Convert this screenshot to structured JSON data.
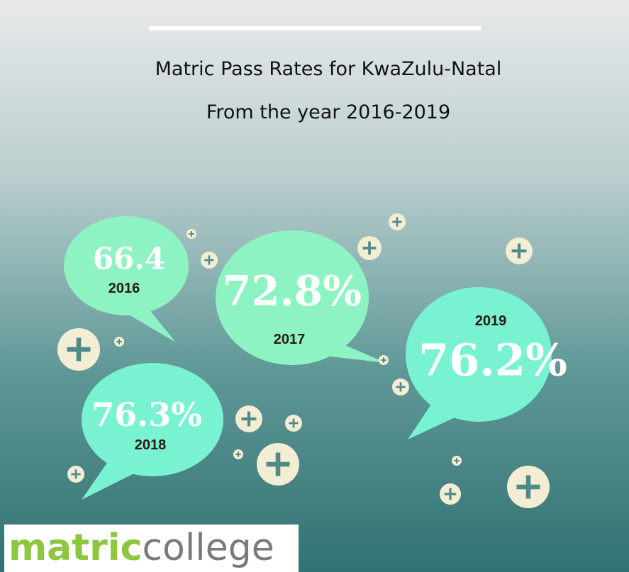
{
  "header": {
    "title": "Matric Pass Rates for KwaZulu-Natal",
    "subtitle": "From the year 2016-2019"
  },
  "bubbles": [
    {
      "year": "2016",
      "value": "66.4"
    },
    {
      "year": "2017",
      "value": "72.8%"
    },
    {
      "year": "2018",
      "value": "76.3%"
    },
    {
      "year": "2019",
      "value": "76.2%"
    }
  ],
  "logo": {
    "part1": "matric",
    "part2": "college"
  }
}
